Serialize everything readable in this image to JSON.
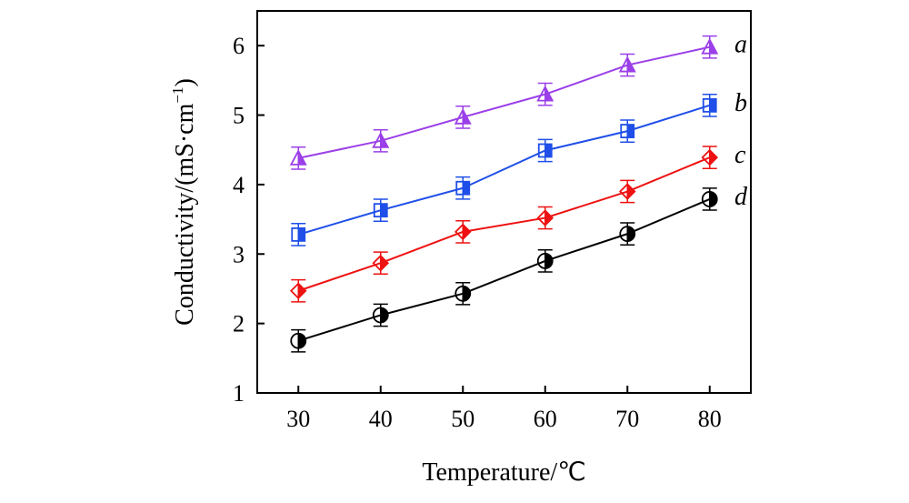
{
  "chart_data": {
    "type": "line",
    "xlabel": "Temperature/℃",
    "ylabel_main": "Conductivity/(mS·cm",
    "ylabel_sup": "−1",
    "ylabel_close": ")",
    "xlim": [
      25,
      85
    ],
    "ylim": [
      1,
      6.5
    ],
    "x_ticks": [
      30,
      40,
      50,
      60,
      70,
      80
    ],
    "y_ticks": [
      1,
      2,
      3,
      4,
      5,
      6
    ],
    "grid": false,
    "legend": "inline labels at right end of each series",
    "x": [
      30,
      40,
      50,
      60,
      70,
      80
    ],
    "series": [
      {
        "name": "a",
        "color": "#9b3fe8",
        "marker": "triangle",
        "values": [
          4.38,
          4.63,
          4.97,
          5.3,
          5.72,
          5.98
        ],
        "error": 0.08
      },
      {
        "name": "b",
        "color": "#1f4fe8",
        "marker": "square",
        "values": [
          3.28,
          3.63,
          3.95,
          4.49,
          4.77,
          5.14
        ],
        "error": 0.08
      },
      {
        "name": "c",
        "color": "#ee1111",
        "marker": "diamond",
        "values": [
          2.47,
          2.87,
          3.32,
          3.52,
          3.9,
          4.39
        ],
        "error": 0.08
      },
      {
        "name": "d",
        "color": "#000000",
        "marker": "circle",
        "values": [
          1.75,
          2.12,
          2.43,
          2.9,
          3.29,
          3.79
        ],
        "error": 0.08
      }
    ]
  }
}
